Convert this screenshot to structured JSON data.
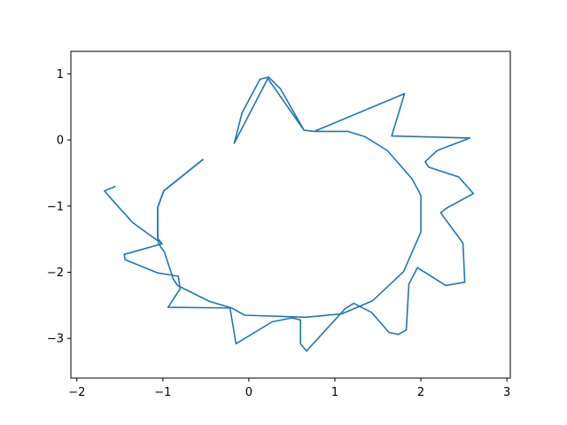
{
  "chart_data": {
    "type": "line",
    "title": "",
    "xlabel": "",
    "ylabel": "",
    "xlim": [
      -2.07,
      3.04
    ],
    "ylim": [
      -3.6,
      1.34
    ],
    "xticks": [
      -2,
      -1,
      0,
      1,
      2,
      3
    ],
    "yticks": [
      1,
      0,
      -1,
      -2,
      -3
    ],
    "xtick_labels": [
      "−2",
      "−1",
      "0",
      "1",
      "2",
      "3"
    ],
    "ytick_labels": [
      "1",
      "0",
      "−1",
      "−2",
      "−3"
    ],
    "grid": false,
    "legend": "none",
    "series": [
      {
        "color": "#1f77b4",
        "x": [
          -0.53,
          -0.99,
          -1.06,
          -1.06,
          -1.01,
          -1.35,
          -1.58,
          -1.68,
          -1.55
        ],
        "y": [
          -0.29,
          -0.77,
          -1.02,
          -1.49,
          -1.57,
          -1.25,
          -0.92,
          -0.77,
          -0.7
        ]
      }
    ],
    "segments": [
      {
        "color": "#1f77b4",
        "x": [
          -0.53,
          -0.99,
          -1.06,
          -1.06,
          -1.01,
          -1.45,
          -1.44,
          -1.06,
          -0.82,
          -0.8,
          -0.94,
          -0.22,
          -0.15,
          0.27,
          0.5,
          0.6,
          0.6,
          0.67,
          1.12,
          1.22,
          1.43,
          1.63,
          1.74,
          1.83,
          1.86,
          1.96,
          2.29,
          2.51,
          2.49,
          2.23,
          2.3,
          2.61,
          2.44,
          2.09,
          2.05,
          2.19,
          2.57,
          1.66,
          1.81,
          0.76,
          0.64,
          0.22,
          -0.17,
          -0.08,
          0.13,
          0.23,
          0.37,
          0.64,
          0.76,
          1.15,
          1.35,
          1.61,
          1.9,
          2.0,
          2.0,
          1.8,
          1.44,
          1.08,
          0.66,
          -0.05,
          -0.2,
          -0.46,
          -0.83,
          -0.88,
          -0.98,
          -1.06
        ],
        "y": [
          -0.29,
          -0.77,
          -1.02,
          -1.49,
          -1.57,
          -1.73,
          -1.81,
          -2.01,
          -2.06,
          -2.25,
          -2.53,
          -2.54,
          -3.08,
          -2.75,
          -2.69,
          -2.72,
          -3.08,
          -3.19,
          -2.55,
          -2.47,
          -2.61,
          -2.91,
          -2.94,
          -2.87,
          -2.18,
          -1.93,
          -2.2,
          -2.15,
          -1.56,
          -1.1,
          -1.03,
          -0.81,
          -0.56,
          -0.41,
          -0.33,
          -0.16,
          0.03,
          0.06,
          0.7,
          0.13,
          0.15,
          0.93,
          -0.05,
          0.41,
          0.92,
          0.95,
          0.77,
          0.15,
          0.13,
          0.13,
          0.05,
          -0.16,
          -0.59,
          -0.84,
          -1.39,
          -1.99,
          -2.43,
          -2.63,
          -2.68,
          -2.65,
          -2.54,
          -2.44,
          -2.2,
          -2.1,
          -1.7,
          -1.55
        ]
      }
    ]
  },
  "colors": {
    "axes": "#000000",
    "line": "#1f77b4",
    "background": "#ffffff"
  }
}
